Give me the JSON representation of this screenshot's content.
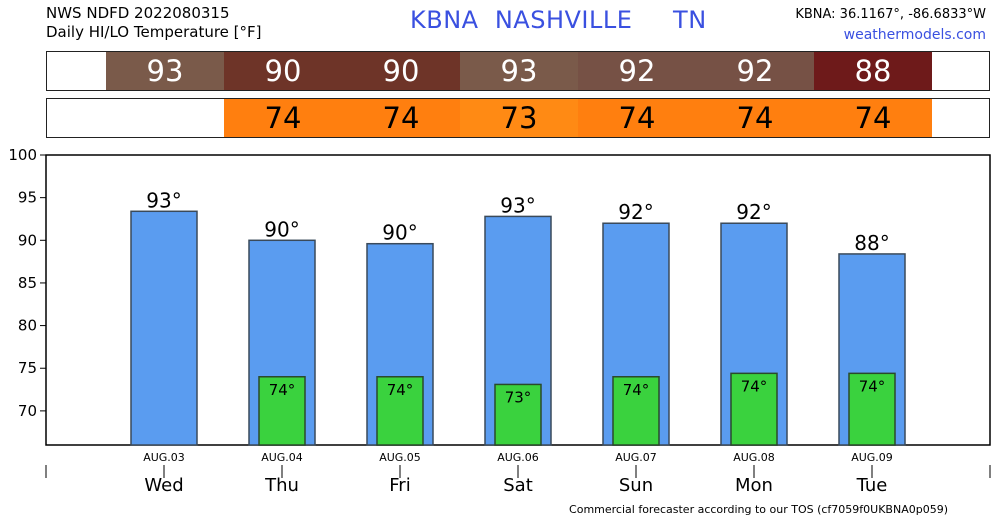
{
  "header": {
    "line1": "NWS NDFD 2022080315",
    "line2": "Daily HI/LO Temperature [°F]",
    "station_title": "KBNA  NASHVILLE     TN",
    "coords": "KBNA: 36.1167°, -86.6833°W",
    "site": "weathermodels.com"
  },
  "hi_strip": [
    {
      "value": "93",
      "color": "#7a5a4a"
    },
    {
      "value": "90",
      "color": "#6e3428"
    },
    {
      "value": "90",
      "color": "#6e3428"
    },
    {
      "value": "93",
      "color": "#7a5a4a"
    },
    {
      "value": "92",
      "color": "#765145"
    },
    {
      "value": "92",
      "color": "#765145"
    },
    {
      "value": "88",
      "color": "#6e1a1a"
    }
  ],
  "lo_strip": [
    {
      "value": "",
      "color": "#ffffff"
    },
    {
      "value": "74",
      "color": "#ff7f0f"
    },
    {
      "value": "74",
      "color": "#ff7f0f"
    },
    {
      "value": "73",
      "color": "#ff8a14"
    },
    {
      "value": "74",
      "color": "#ff7f0f"
    },
    {
      "value": "74",
      "color": "#ff7f0f"
    },
    {
      "value": "74",
      "color": "#ff7f0f"
    }
  ],
  "chart_data": {
    "type": "bar",
    "categories": [
      "AUG.03",
      "AUG.04",
      "AUG.05",
      "AUG.06",
      "AUG.07",
      "AUG.08",
      "AUG.09"
    ],
    "day_labels": [
      "Wed",
      "Thu",
      "Fri",
      "Sat",
      "Sun",
      "Mon",
      "Tue"
    ],
    "series": [
      {
        "values": [
          93.4,
          90.0,
          89.6,
          92.8,
          92.0,
          92.0,
          88.4
        ],
        "labels": [
          "93°",
          "90°",
          "90°",
          "93°",
          "92°",
          "92°",
          "88°"
        ],
        "color": "#5a9cf0"
      },
      {
        "values": [
          null,
          74.0,
          74.0,
          73.1,
          74.0,
          74.4,
          74.4
        ],
        "labels": [
          "",
          "74°",
          "74°",
          "73°",
          "74°",
          "74°",
          "74°"
        ],
        "color": "#3ad23e"
      }
    ],
    "ylim": [
      66,
      100
    ],
    "yticks": [
      70,
      75,
      80,
      85,
      90,
      95,
      100
    ],
    "grid": false
  },
  "footer": "Commercial forecaster according to our TOS (cf7059f0UKBNA0p059)"
}
